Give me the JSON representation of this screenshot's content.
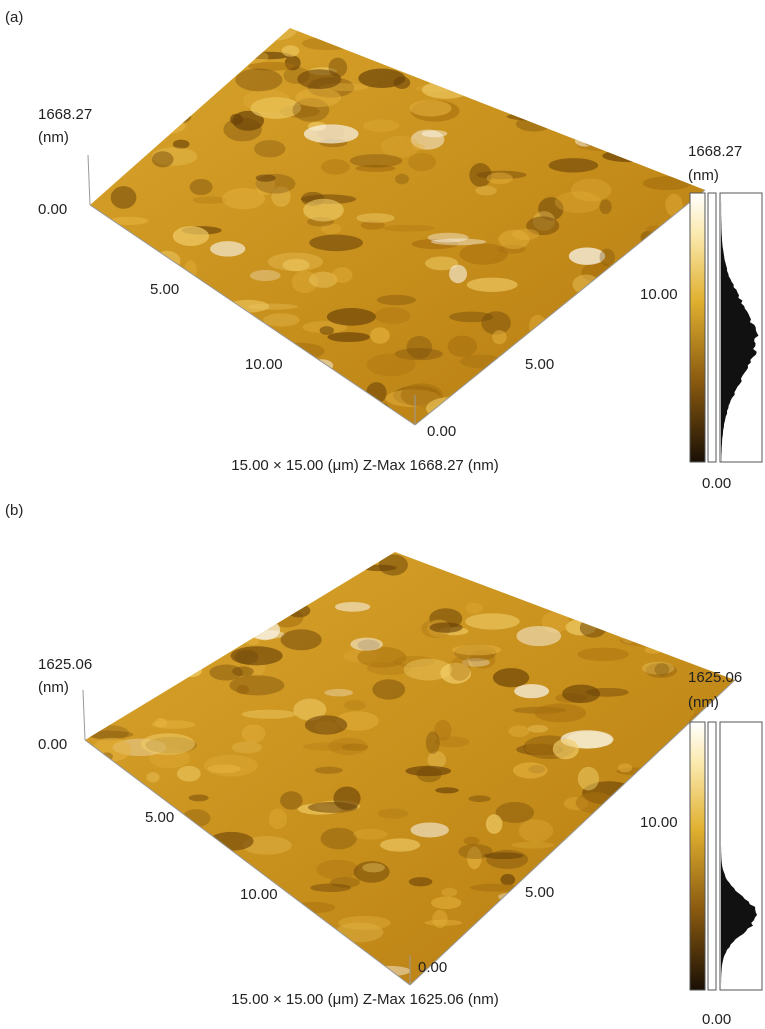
{
  "panels": [
    {
      "label": "(a)",
      "z_max_label": "1668.27",
      "z_unit": "(nm)",
      "z_min_label": "0.00",
      "left_axis_ticks": [
        "5.00",
        "10.00"
      ],
      "right_axis_ticks": [
        "10.00",
        "5.00"
      ],
      "origin_label": "0.00",
      "caption": "15.00 × 15.00 (μm) Z-Max 1668.27 (nm)",
      "colorbar_max": "1668.27",
      "colorbar_unit": "(nm)",
      "colorbar_min": "0.00"
    },
    {
      "label": "(b)",
      "z_max_label": "1625.06",
      "z_unit": "(nm)",
      "z_min_label": "0.00",
      "left_axis_ticks": [
        "5.00",
        "10.00"
      ],
      "right_axis_ticks": [
        "10.00",
        "5.00"
      ],
      "origin_label": "0.00",
      "caption": "15.00 × 15.00 (μm) Z-Max 1625.06 (nm)",
      "colorbar_max": "1625.06",
      "colorbar_unit": "(nm)",
      "colorbar_min": "0.00"
    }
  ]
}
